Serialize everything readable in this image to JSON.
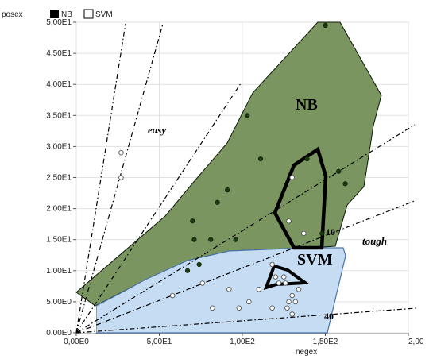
{
  "chart_data": {
    "type": "scatter",
    "xlabel": "negex",
    "ylabel": "posex",
    "xlim": [
      0,
      200
    ],
    "ylim": [
      0,
      50
    ],
    "x_ticks": [
      "0,00E0",
      "5,00E1",
      "1,00E2",
      "1,50E2",
      "2,00"
    ],
    "y_ticks": [
      "0,00E0",
      "5,00E0",
      "1,00E1",
      "1,50E1",
      "2,00E1",
      "2,50E1",
      "3,00E1",
      "3,50E1",
      "4,00E1",
      "4,50E1",
      "5,00E1"
    ],
    "legend": {
      "placement": "top-left",
      "entries": [
        {
          "label": "NB",
          "color": "#000000"
        },
        {
          "label": "SVM",
          "color": "#ffffff"
        }
      ]
    },
    "series": [
      {
        "name": "NB",
        "marker": "filled",
        "color": "#1b3a12",
        "points": [
          [
            150,
            49.5
          ],
          [
            103,
            35
          ],
          [
            111,
            28
          ],
          [
            91,
            23
          ],
          [
            85,
            21
          ],
          [
            158,
            26
          ],
          [
            162,
            24
          ],
          [
            70,
            18
          ],
          [
            71,
            15
          ],
          [
            81,
            15
          ],
          [
            96,
            15
          ],
          [
            74,
            11
          ],
          [
            67,
            10
          ],
          [
            139,
            28
          ],
          [
            148,
            16
          ]
        ]
      },
      {
        "name": "SVM",
        "marker": "open",
        "color": "#ffffff",
        "points": [
          [
            27,
            29
          ],
          [
            27,
            25
          ],
          [
            130,
            25
          ],
          [
            128,
            18
          ],
          [
            137,
            16
          ],
          [
            118,
            11
          ],
          [
            120,
            9
          ],
          [
            125,
            9
          ],
          [
            122,
            8
          ],
          [
            126,
            8
          ],
          [
            92,
            7
          ],
          [
            110,
            7
          ],
          [
            134,
            7
          ],
          [
            130,
            6
          ],
          [
            132,
            5
          ],
          [
            128,
            5
          ],
          [
            104,
            5
          ],
          [
            118,
            4
          ],
          [
            82,
            4
          ],
          [
            98,
            4
          ],
          [
            127,
            4
          ],
          [
            130,
            3
          ],
          [
            58,
            6
          ],
          [
            76,
            8
          ]
        ]
      }
    ],
    "regions": [
      {
        "name": "NB",
        "fill": "#7a9560",
        "outline": "#0d1a08"
      },
      {
        "name": "SVM",
        "fill": "#c5dcf3",
        "outline": "#4a73a8"
      }
    ],
    "annotations": [
      "easy",
      "tough",
      "NB",
      "SVM",
      "10",
      "40"
    ]
  }
}
